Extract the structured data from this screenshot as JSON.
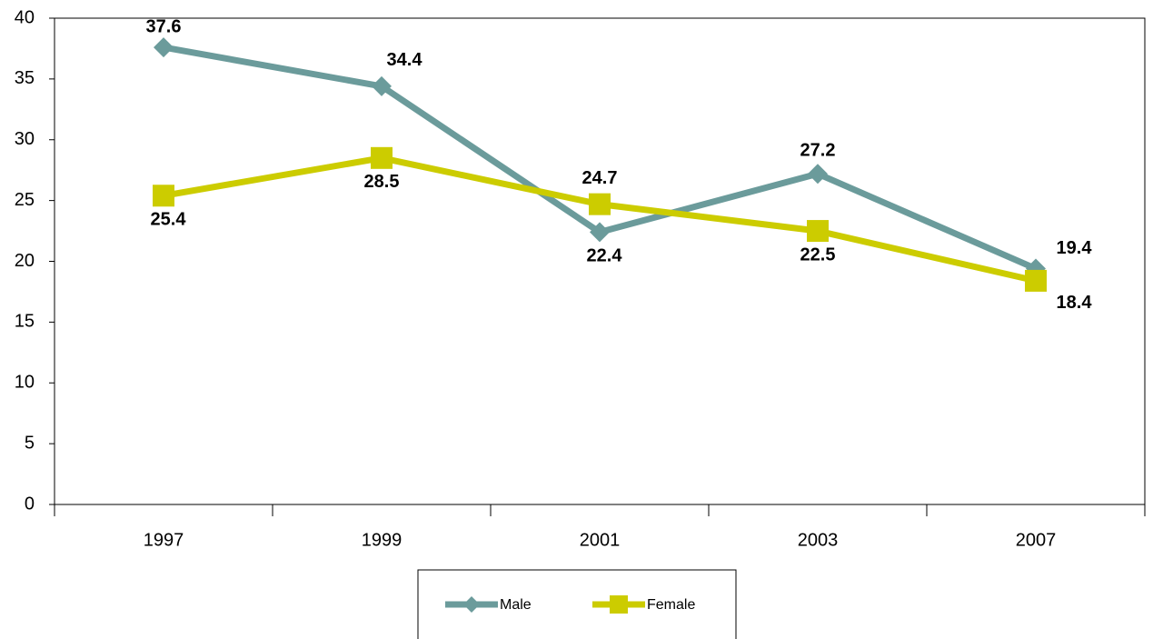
{
  "chart_data": {
    "type": "line",
    "categories": [
      "1997",
      "1999",
      "2001",
      "2003",
      "2007"
    ],
    "series": [
      {
        "name": "Male",
        "color": "#6b9b9b",
        "marker": "diamond",
        "values": [
          37.6,
          34.4,
          22.4,
          27.2,
          19.4
        ]
      },
      {
        "name": "Female",
        "color": "#cccc00",
        "marker": "square",
        "values": [
          25.4,
          28.5,
          24.7,
          22.5,
          18.4
        ]
      }
    ],
    "ylim": [
      0,
      40
    ],
    "yticks": [
      0,
      5,
      10,
      15,
      20,
      25,
      30,
      35,
      40
    ],
    "grid": false,
    "legend": "bottom"
  }
}
